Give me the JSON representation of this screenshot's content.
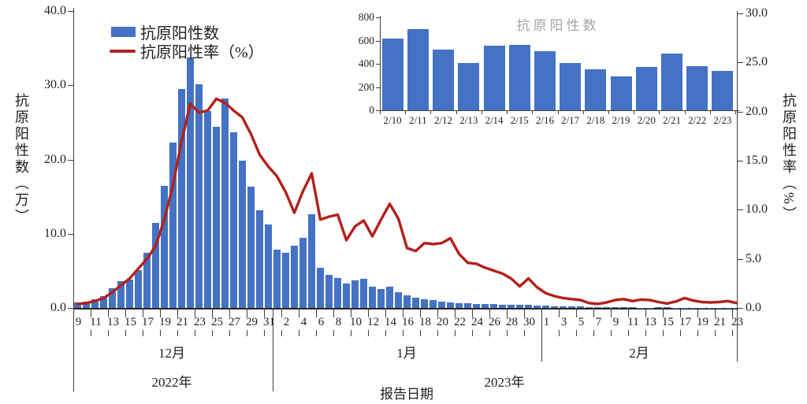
{
  "ui": {
    "legend": {
      "bar_label": "抗原阳性数",
      "line_label": "抗原阳性率（%）"
    },
    "left_axis_title": "抗原阳性数（万）",
    "right_axis_title": "抗原阳性率（%）",
    "x_axis_title": "报告日期",
    "month_labels": {
      "dec": "12月",
      "jan": "1月",
      "feb": "2月"
    },
    "year_labels": {
      "y2022": "2022年",
      "y2023": "2023年"
    },
    "inset_title": "抗原阳性数",
    "colors": {
      "bar": "#4472c4",
      "line": "#b2201b",
      "inset_title": "#a6a6a6",
      "axis": "#3f3f3f",
      "text": "#1f1f1f"
    }
  },
  "chart_data": [
    {
      "type": "bar+line",
      "title": "",
      "xlabel": "报告日期",
      "ylabel_left": "抗原阳性数（万）",
      "ylabel_right": "抗原阳性率（%）",
      "ylim_left": [
        0,
        40
      ],
      "ylim_right": [
        0,
        30
      ],
      "left_axis_ticks": [
        "0.0",
        "10.0",
        "20.0",
        "30.0",
        "40.0"
      ],
      "right_axis_ticks": [
        "0.0",
        "5.0",
        "10.0",
        "15.0",
        "20.0",
        "25.0",
        "30.0"
      ],
      "day_tick_labels": [
        "9",
        "11",
        "13",
        "15",
        "17",
        "19",
        "21",
        "23",
        "25",
        "27",
        "29",
        "31",
        "2",
        "4",
        "6",
        "8",
        "10",
        "12",
        "14",
        "16",
        "18",
        "20",
        "22",
        "24",
        "26",
        "28",
        "30",
        "1",
        "3",
        "5",
        "7",
        "9",
        "11",
        "13",
        "15",
        "17",
        "19",
        "21",
        "23"
      ],
      "month_sections": [
        "12月",
        "1月",
        "2月"
      ],
      "year_sections": [
        "2022年",
        "2023年"
      ],
      "dates": [
        "12/9",
        "12/10",
        "12/11",
        "12/12",
        "12/13",
        "12/14",
        "12/15",
        "12/16",
        "12/17",
        "12/18",
        "12/19",
        "12/20",
        "12/21",
        "12/22",
        "12/23",
        "12/24",
        "12/25",
        "12/26",
        "12/27",
        "12/28",
        "12/29",
        "12/30",
        "12/31",
        "1/1",
        "1/2",
        "1/3",
        "1/4",
        "1/5",
        "1/6",
        "1/7",
        "1/8",
        "1/9",
        "1/10",
        "1/11",
        "1/12",
        "1/13",
        "1/14",
        "1/15",
        "1/16",
        "1/17",
        "1/18",
        "1/19",
        "1/20",
        "1/21",
        "1/22",
        "1/23",
        "1/24",
        "1/25",
        "1/26",
        "1/27",
        "1/28",
        "1/29",
        "1/30",
        "1/31",
        "2/1",
        "2/2",
        "2/3",
        "2/4",
        "2/5",
        "2/6",
        "2/7",
        "2/8",
        "2/9",
        "2/10",
        "2/11",
        "2/12",
        "2/13",
        "2/14",
        "2/15",
        "2/16",
        "2/17",
        "2/18",
        "2/19",
        "2/20",
        "2/21",
        "2/22",
        "2/23"
      ],
      "series": [
        {
          "name": "抗原阳性数",
          "unit": "万",
          "axis": "left",
          "values": [
            0.7,
            0.9,
            1.2,
            1.6,
            2.7,
            3.6,
            3.8,
            5.1,
            7.4,
            11.5,
            16.5,
            22.3,
            29.5,
            33.7,
            30.1,
            26.5,
            24.4,
            28.2,
            23.7,
            19.8,
            16.3,
            13.2,
            11.2,
            7.9,
            7.4,
            8.4,
            9.4,
            12.6,
            5.4,
            4.5,
            4.0,
            3.3,
            3.7,
            3.9,
            2.9,
            2.5,
            2.9,
            2.1,
            1.7,
            1.35,
            1.2,
            1.05,
            0.9,
            0.75,
            0.65,
            0.6,
            0.58,
            0.52,
            0.5,
            0.48,
            0.45,
            0.42,
            0.4,
            0.35,
            0.3,
            0.27,
            0.22,
            0.2,
            0.17,
            0.15,
            0.13,
            0.12,
            0.1,
            0.06,
            0.07,
            0.05,
            0.04,
            0.06,
            0.06,
            0.05,
            0.04,
            0.04,
            0.03,
            0.04,
            0.05,
            0.04,
            0.03
          ]
        },
        {
          "name": "抗原阳性率（%）",
          "unit": "%",
          "axis": "right",
          "values": [
            0.4,
            0.5,
            0.7,
            1.0,
            1.6,
            2.3,
            3.0,
            4.0,
            5.0,
            6.3,
            9.0,
            12.5,
            17.0,
            20.8,
            19.9,
            20.1,
            21.3,
            20.9,
            20.1,
            19.4,
            17.7,
            15.6,
            14.4,
            13.4,
            11.8,
            9.7,
            11.9,
            13.7,
            9.0,
            9.3,
            9.5,
            6.9,
            8.3,
            8.9,
            7.3,
            9.0,
            10.6,
            9.1,
            6.1,
            5.8,
            6.6,
            6.5,
            6.6,
            7.1,
            5.5,
            4.6,
            4.5,
            4.1,
            3.8,
            3.5,
            3.0,
            2.2,
            3.0,
            2.1,
            1.5,
            1.2,
            1.0,
            0.9,
            0.8,
            0.5,
            0.4,
            0.55,
            0.8,
            0.9,
            0.7,
            0.85,
            0.8,
            0.6,
            0.45,
            0.65,
            1.0,
            0.75,
            0.6,
            0.55,
            0.6,
            0.7,
            0.5
          ]
        }
      ]
    },
    {
      "type": "bar",
      "title": "抗原阳性数",
      "categories": [
        "2/10",
        "2/11",
        "2/12",
        "2/13",
        "2/14",
        "2/15",
        "2/16",
        "2/17",
        "2/18",
        "2/19",
        "2/20",
        "2/21",
        "2/22",
        "2/23"
      ],
      "values": [
        620,
        700,
        520,
        405,
        555,
        565,
        510,
        410,
        355,
        295,
        370,
        490,
        378,
        340
      ],
      "y_ticks": [
        "0",
        "200",
        "400",
        "600",
        "800"
      ],
      "ylim": [
        0,
        800
      ],
      "grid": false,
      "legend_position": "none"
    }
  ]
}
